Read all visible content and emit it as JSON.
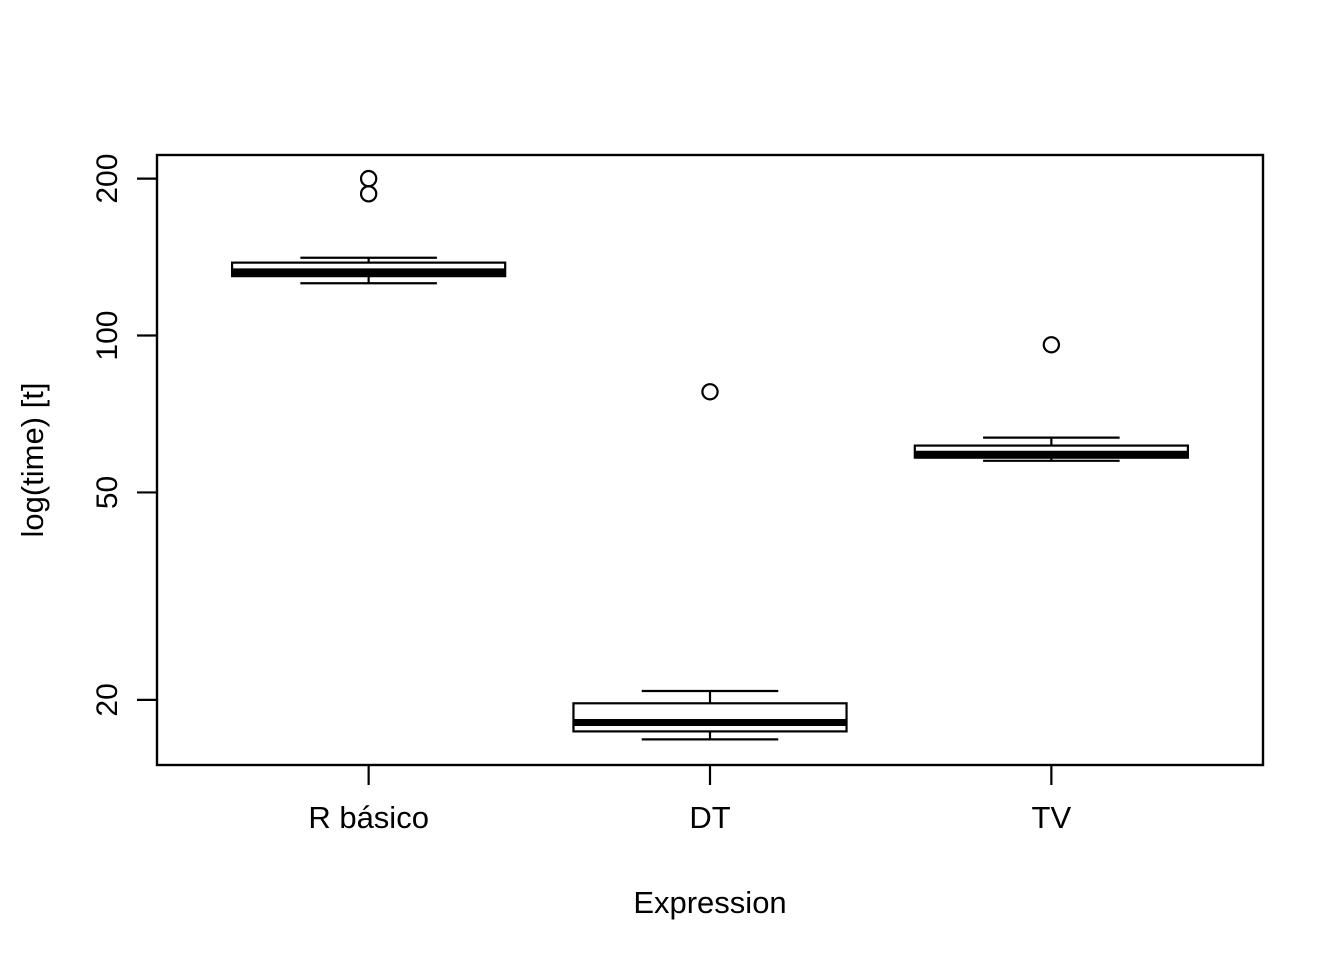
{
  "figure": {
    "background": "#ffffff",
    "ink_color": "#000000"
  },
  "chart_data": {
    "type": "boxplot",
    "title": "",
    "xlabel": "Expression",
    "ylabel": "log(time) [t]",
    "categories": [
      "R básico",
      "DT",
      "TV"
    ],
    "y_scale": "log10",
    "y_ticks": [
      "20",
      "50",
      "100",
      "200"
    ],
    "ylim": [
      15,
      222
    ],
    "grid": false,
    "legend": "none",
    "series": [
      {
        "name": "R básico",
        "whisker_low": 126,
        "q1": 130,
        "median": 132.5,
        "q3": 138,
        "whisker_high": 141,
        "outliers": [
          187,
          200
        ]
      },
      {
        "name": "DT",
        "whisker_low": 16.8,
        "q1": 17.4,
        "median": 18.1,
        "q3": 19.7,
        "whisker_high": 20.8,
        "outliers": [
          78
        ]
      },
      {
        "name": "TV",
        "whisker_low": 57.5,
        "q1": 58.3,
        "median": 59.2,
        "q3": 61.5,
        "whisker_high": 63.7,
        "outliers": [
          96
        ]
      }
    ]
  }
}
